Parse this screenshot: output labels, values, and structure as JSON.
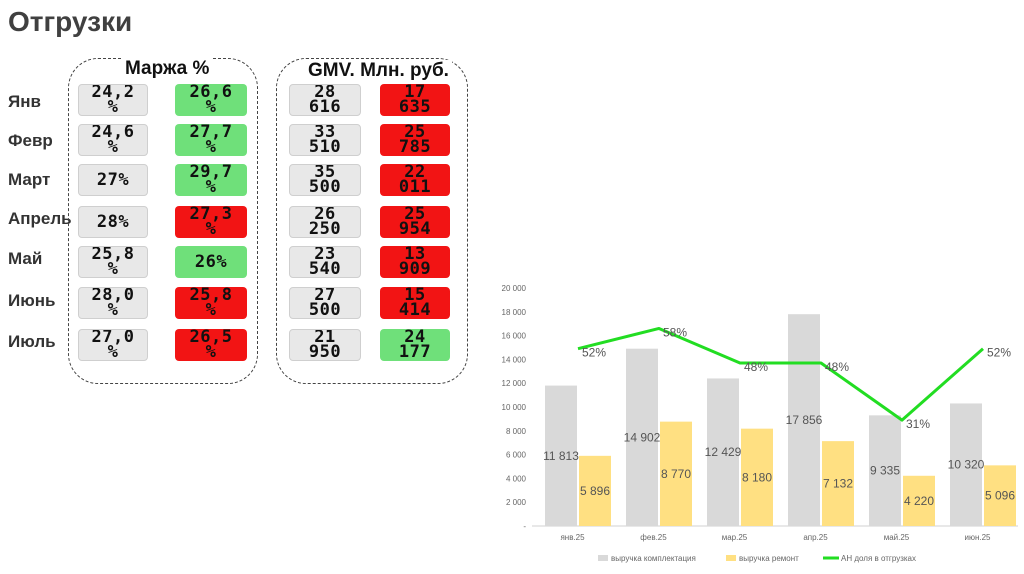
{
  "title": "Отгрузки",
  "months": [
    "Янв",
    "Февр",
    "Март",
    "Апрель",
    "Май",
    "Июнь",
    "Июль"
  ],
  "margin_panel": {
    "title": "Маржа %",
    "col1": [
      "24,2\n%",
      "24,6\n%",
      "27%",
      "28%",
      "25,8\n%",
      "28,0\n%",
      "27,0\n%"
    ],
    "col2": [
      "26,6\n%",
      "27,7\n%",
      "29,7\n%",
      "27,3\n%",
      "26%",
      "25,8\n%",
      "26,5\n%"
    ],
    "col2_status": [
      "green",
      "green",
      "green",
      "red",
      "green",
      "red",
      "red"
    ]
  },
  "gmv_panel": {
    "title": "GMV. Млн. руб.",
    "col1": [
      "28\n616",
      "33\n510",
      "35\n500",
      "26\n250",
      "23\n540",
      "27\n500",
      "21\n950"
    ],
    "col2": [
      "17\n635",
      "25\n785",
      "22\n011",
      "25\n954",
      "13\n909",
      "15\n414",
      "24\n177"
    ],
    "col2_status": [
      "red",
      "red",
      "red",
      "red",
      "red",
      "red",
      "green"
    ]
  },
  "colors": {
    "bar_gray": "#d9d9d9",
    "bar_yellow": "#ffe082",
    "line_green": "#22dd22",
    "cell_green": "#6fe07a",
    "cell_red": "#f21414",
    "cell_gray": "#e8e8e8"
  },
  "chart_data": {
    "type": "bar",
    "categories": [
      "янв.25",
      "фев.25",
      "мар.25",
      "апр.25",
      "май.25",
      "июн.25"
    ],
    "series": [
      {
        "name": "выручка комплектация",
        "type": "bar",
        "values": [
          11813,
          14902,
          12429,
          17856,
          9335,
          10320
        ],
        "labels": [
          "11 813",
          "14 902",
          "12 429",
          "17 856",
          "9 335",
          "10 320"
        ]
      },
      {
        "name": "выручка ремонт",
        "type": "bar",
        "values": [
          5896,
          8770,
          8180,
          7132,
          4220,
          5096
        ],
        "labels": [
          "5 896",
          "8 770",
          "8 180",
          "7 132",
          "4 220",
          "5 096"
        ]
      },
      {
        "name": "АН доля в отгрузках",
        "type": "line",
        "values": [
          52,
          58,
          48,
          48,
          31,
          52
        ],
        "labels": [
          "52%",
          "58%",
          "48%",
          "48%",
          "31%",
          "52%"
        ]
      }
    ],
    "bar_heights_actual": [
      11800,
      14900,
      12400,
      17800,
      9300,
      10300
    ],
    "yticks": [
      "20 000",
      "18 000",
      "16 000",
      "14 000",
      "12 000",
      "10 000",
      "8 000",
      "6 000",
      "4 000",
      "2 000",
      "-"
    ],
    "ylim": [
      0,
      20000
    ],
    "line_plot_values": [
      14900,
      16600,
      13700,
      13700,
      8900,
      14900
    ],
    "legend_position": "bottom",
    "grid": false
  }
}
